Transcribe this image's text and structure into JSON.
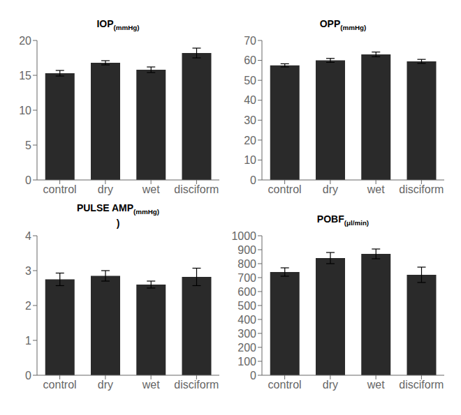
{
  "chart_data": [
    {
      "type": "bar",
      "title": "IOP(mmHg)",
      "categories": [
        "control",
        "dry",
        "wet",
        "disciform"
      ],
      "values": [
        15.3,
        16.8,
        15.8,
        18.2
      ],
      "errors": [
        0.4,
        0.3,
        0.4,
        0.7
      ],
      "color": "#2a2a2a",
      "ylim": [
        0,
        20
      ],
      "yticks": [
        0,
        5,
        10,
        15,
        20
      ],
      "grid": false
    },
    {
      "type": "bar",
      "title": "OPP(mmHg)",
      "categories": [
        "control",
        "dry",
        "wet",
        "disciform"
      ],
      "values": [
        57.5,
        60.0,
        63.0,
        59.5
      ],
      "errors": [
        0.8,
        1.0,
        1.2,
        1.0
      ],
      "color": "#2a2a2a",
      "ylim": [
        0,
        70
      ],
      "yticks": [
        0,
        10,
        20,
        30,
        40,
        50,
        60,
        70
      ],
      "grid": false
    },
    {
      "type": "bar",
      "title": "PULSE AMP(mmHg)\n)",
      "categories": [
        "control",
        "dry",
        "wet",
        "disciform"
      ],
      "values": [
        2.75,
        2.85,
        2.6,
        2.82
      ],
      "errors": [
        0.18,
        0.15,
        0.1,
        0.25
      ],
      "color": "#2a2a2a",
      "ylim": [
        0,
        4
      ],
      "yticks": [
        0,
        1,
        2,
        3,
        4
      ],
      "grid": false
    },
    {
      "type": "bar",
      "title": "POBF(μl/min)",
      "categories": [
        "control",
        "dry",
        "wet",
        "disciform"
      ],
      "values": [
        740,
        840,
        870,
        720
      ],
      "errors": [
        30,
        40,
        35,
        55
      ],
      "color": "#2a2a2a",
      "ylim": [
        0,
        1000
      ],
      "yticks": [
        0,
        100,
        200,
        300,
        400,
        500,
        600,
        700,
        800,
        900,
        1000
      ],
      "grid": false
    }
  ]
}
